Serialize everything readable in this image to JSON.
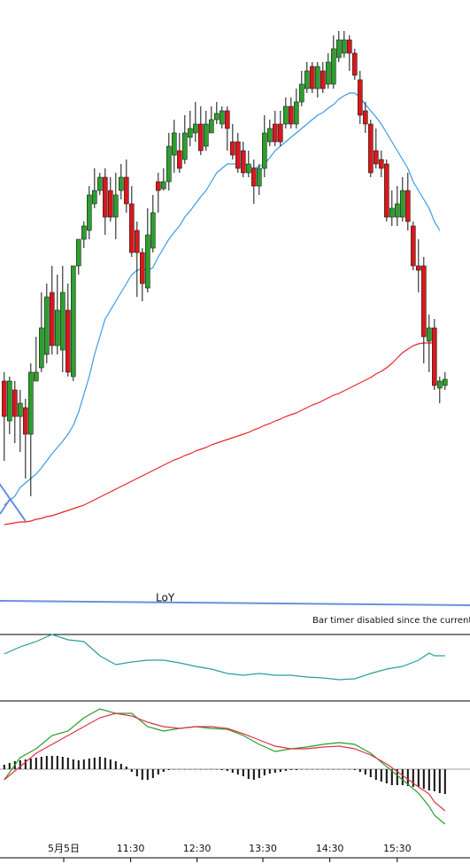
{
  "chart_data": [
    {
      "type": "candlestick",
      "open": [
        270,
        225,
        260,
        230,
        240,
        210,
        270,
        285,
        300,
        370,
        310,
        305,
        350,
        275,
        400,
        430,
        440,
        470,
        485,
        500,
        485,
        455,
        485,
        500,
        470,
        440,
        415,
        375,
        420,
        495,
        487,
        495,
        525,
        530,
        520,
        545,
        550,
        560,
        535,
        550,
        565,
        560,
        575,
        540,
        540,
        530,
        505,
        510,
        490,
        510,
        540,
        560,
        560,
        560,
        580,
        560,
        585,
        600,
        625,
        600,
        620,
        605,
        605,
        635,
        640,
        655,
        640,
        610,
        575,
        560,
        530,
        520,
        515,
        455,
        455,
        455,
        485,
        445,
        400,
        400,
        315,
        330,
        262,
        265
      ],
      "high": [
        280,
        275,
        270,
        260,
        250,
        290,
        320,
        370,
        380,
        400,
        390,
        400,
        380,
        400,
        430,
        450,
        490,
        510,
        505,
        510,
        500,
        505,
        515,
        520,
        490,
        450,
        420,
        465,
        480,
        505,
        510,
        550,
        565,
        550,
        570,
        575,
        585,
        580,
        575,
        580,
        585,
        580,
        580,
        560,
        550,
        540,
        530,
        520,
        515,
        570,
        565,
        575,
        575,
        590,
        590,
        600,
        620,
        630,
        630,
        630,
        630,
        640,
        660,
        665,
        665,
        660,
        645,
        620,
        585,
        565,
        555,
        530,
        520,
        485,
        490,
        500,
        505,
        450,
        430,
        410,
        345,
        340,
        275,
        280
      ],
      "low": [
        180,
        210,
        200,
        190,
        160,
        140,
        270,
        280,
        290,
        300,
        300,
        280,
        275,
        270,
        390,
        420,
        430,
        465,
        480,
        435,
        450,
        430,
        475,
        460,
        410,
        365,
        360,
        370,
        415,
        460,
        485,
        485,
        505,
        505,
        515,
        535,
        540,
        525,
        530,
        550,
        560,
        555,
        530,
        520,
        505,
        500,
        500,
        470,
        480,
        500,
        535,
        535,
        535,
        555,
        555,
        555,
        580,
        595,
        595,
        590,
        595,
        600,
        600,
        630,
        635,
        620,
        610,
        560,
        550,
        500,
        510,
        500,
        450,
        445,
        445,
        450,
        440,
        395,
        370,
        290,
        280,
        260,
        245,
        260
      ],
      "close": [
        230,
        270,
        230,
        245,
        210,
        280,
        280,
        330,
        365,
        310,
        350,
        370,
        280,
        400,
        430,
        445,
        480,
        485,
        500,
        455,
        455,
        480,
        500,
        470,
        415,
        415,
        380,
        435,
        460,
        485,
        495,
        535,
        550,
        510,
        550,
        555,
        560,
        530,
        560,
        565,
        572,
        575,
        555,
        525,
        510,
        505,
        515,
        490,
        510,
        550,
        555,
        540,
        540,
        580,
        560,
        585,
        605,
        620,
        600,
        625,
        600,
        630,
        645,
        655,
        655,
        640,
        615,
        570,
        560,
        505,
        515,
        510,
        455,
        465,
        470,
        485,
        450,
        400,
        395,
        320,
        330,
        265,
        270,
        272
      ],
      "up_color": "#2ca02c",
      "down_color": "#d9181c",
      "ylim": [
        0,
        700
      ],
      "xlim": [
        -0.8,
        87.7
      ],
      "overlays": [
        {
          "color": "#3a9ae8",
          "values": [
            130,
            135,
            140,
            150,
            155,
            160,
            165,
            172,
            180,
            188,
            195,
            202,
            210,
            220,
            235,
            255,
            275,
            300,
            320,
            340,
            350,
            360,
            370,
            380,
            390,
            395,
            397,
            395,
            398,
            410,
            420,
            430,
            438,
            445,
            455,
            462,
            470,
            478,
            485,
            495,
            505,
            510,
            515,
            515,
            515,
            515,
            513,
            510,
            512,
            515,
            522,
            530,
            535,
            540,
            545,
            550,
            555,
            560,
            565,
            570,
            573,
            578,
            582,
            588,
            592,
            595,
            595,
            590,
            582,
            575,
            568,
            560,
            550,
            540,
            530,
            520,
            510,
            495,
            485,
            475,
            465,
            450,
            440,
            null
          ]
        },
        {
          "color": "#e8262a",
          "values": [
            108,
            109,
            110,
            111,
            111,
            112,
            114,
            115,
            117,
            118,
            120,
            122,
            124,
            126,
            128,
            130,
            133,
            136,
            139,
            142,
            145,
            148,
            151,
            154,
            157,
            160,
            163,
            166,
            169,
            172,
            175,
            178,
            181,
            183,
            186,
            188,
            191,
            193,
            195,
            198,
            200,
            202,
            204,
            206,
            208,
            210,
            212,
            215,
            217,
            220,
            222,
            225,
            227,
            230,
            232,
            234,
            237,
            240,
            243,
            245,
            248,
            251,
            254,
            256,
            259,
            262,
            265,
            268,
            271,
            274,
            278,
            281,
            285,
            290,
            296,
            302,
            306,
            310,
            312,
            313,
            313,
            313,
            null,
            null
          ]
        }
      ],
      "loy": {
        "label": "LoY",
        "values": [
          22,
          17
        ],
        "color": "#6b8fe0"
      },
      "trendlines": [
        {
          "x": [
            -1,
            4
          ],
          "values": [
            155,
            112
          ],
          "color": "#6b8fe0"
        },
        {
          "x": [
            -0.8,
            1.2
          ],
          "values": [
            120,
            138
          ],
          "color": "#6b8fe0"
        }
      ],
      "status_text": "Bar timer disabled since the current t"
    },
    {
      "type": "line",
      "ylim": [
        0,
        73
      ],
      "xlim": [
        -0.8,
        87.7
      ],
      "color": "#2a9d9d",
      "x": [
        0,
        3,
        6,
        9,
        12,
        15,
        18,
        21,
        24,
        27,
        30,
        33,
        36,
        39,
        42,
        45,
        48,
        51,
        54,
        57,
        60,
        63,
        66,
        69,
        72,
        75,
        78,
        80,
        81,
        83
      ],
      "values": [
        52,
        60,
        66,
        74,
        68,
        66,
        50,
        40,
        43,
        45,
        45,
        42,
        38,
        35,
        30,
        28,
        30,
        28,
        28,
        26,
        25,
        23,
        24,
        30,
        35,
        38,
        45,
        53,
        50,
        50
      ]
    },
    {
      "type": "macd",
      "ylim": [
        -100,
        76
      ],
      "xlim": [
        -0.8,
        87.7
      ],
      "histogram": [
        5,
        7,
        9,
        10,
        11,
        12,
        13,
        14,
        15,
        15,
        15,
        14,
        13,
        11,
        10,
        11,
        12,
        13,
        14,
        13,
        11,
        9,
        6,
        3,
        -3,
        -8,
        -12,
        -12,
        -10,
        -6,
        -3,
        -1,
        0,
        0,
        0,
        0,
        0,
        0,
        0,
        0,
        0,
        -1,
        -2,
        -4,
        -6,
        -8,
        -11,
        -12,
        -10,
        -7,
        -5,
        -4,
        -3,
        -2,
        -1,
        -1,
        0,
        0,
        0,
        0,
        0,
        0,
        0,
        0,
        0,
        0,
        -1,
        -3,
        -6,
        -9,
        -12,
        -14,
        -16,
        -18,
        -18,
        -18,
        -19,
        -20,
        -20,
        -22,
        -24,
        -25,
        -27,
        -28
      ],
      "histogram_color": "#111111",
      "x": [
        0,
        3,
        6,
        9,
        12,
        15,
        18,
        21,
        24,
        27,
        30,
        33,
        36,
        39,
        42,
        45,
        48,
        51,
        54,
        57,
        60,
        63,
        66,
        69,
        72,
        75,
        78,
        80,
        81,
        83
      ],
      "series": [
        {
          "color": "#2a9d2a",
          "values": [
            -12,
            13,
            23,
            38,
            43,
            58,
            68,
            63,
            63,
            48,
            43,
            46,
            48,
            46,
            45,
            38,
            28,
            20,
            23,
            25,
            28,
            30,
            28,
            18,
            3,
            -12,
            -27,
            -42,
            -52,
            -62
          ]
        },
        {
          "color": "#e0304a",
          "values": [
            -12,
            3,
            18,
            28,
            38,
            48,
            58,
            63,
            60,
            53,
            48,
            46,
            48,
            48,
            46,
            40,
            33,
            26,
            23,
            23,
            25,
            26,
            23,
            16,
            6,
            -7,
            -20,
            -28,
            -37,
            -47
          ]
        }
      ],
      "xticks": [
        {
          "value": 11.2,
          "label": "5月5日"
        },
        {
          "value": 23.8,
          "label": "11:30"
        },
        {
          "value": 36.3,
          "label": "12:30"
        },
        {
          "value": 48.7,
          "label": "13:30"
        },
        {
          "value": 61.3,
          "label": "14:30"
        },
        {
          "value": 74,
          "label": "15:30"
        }
      ]
    }
  ]
}
